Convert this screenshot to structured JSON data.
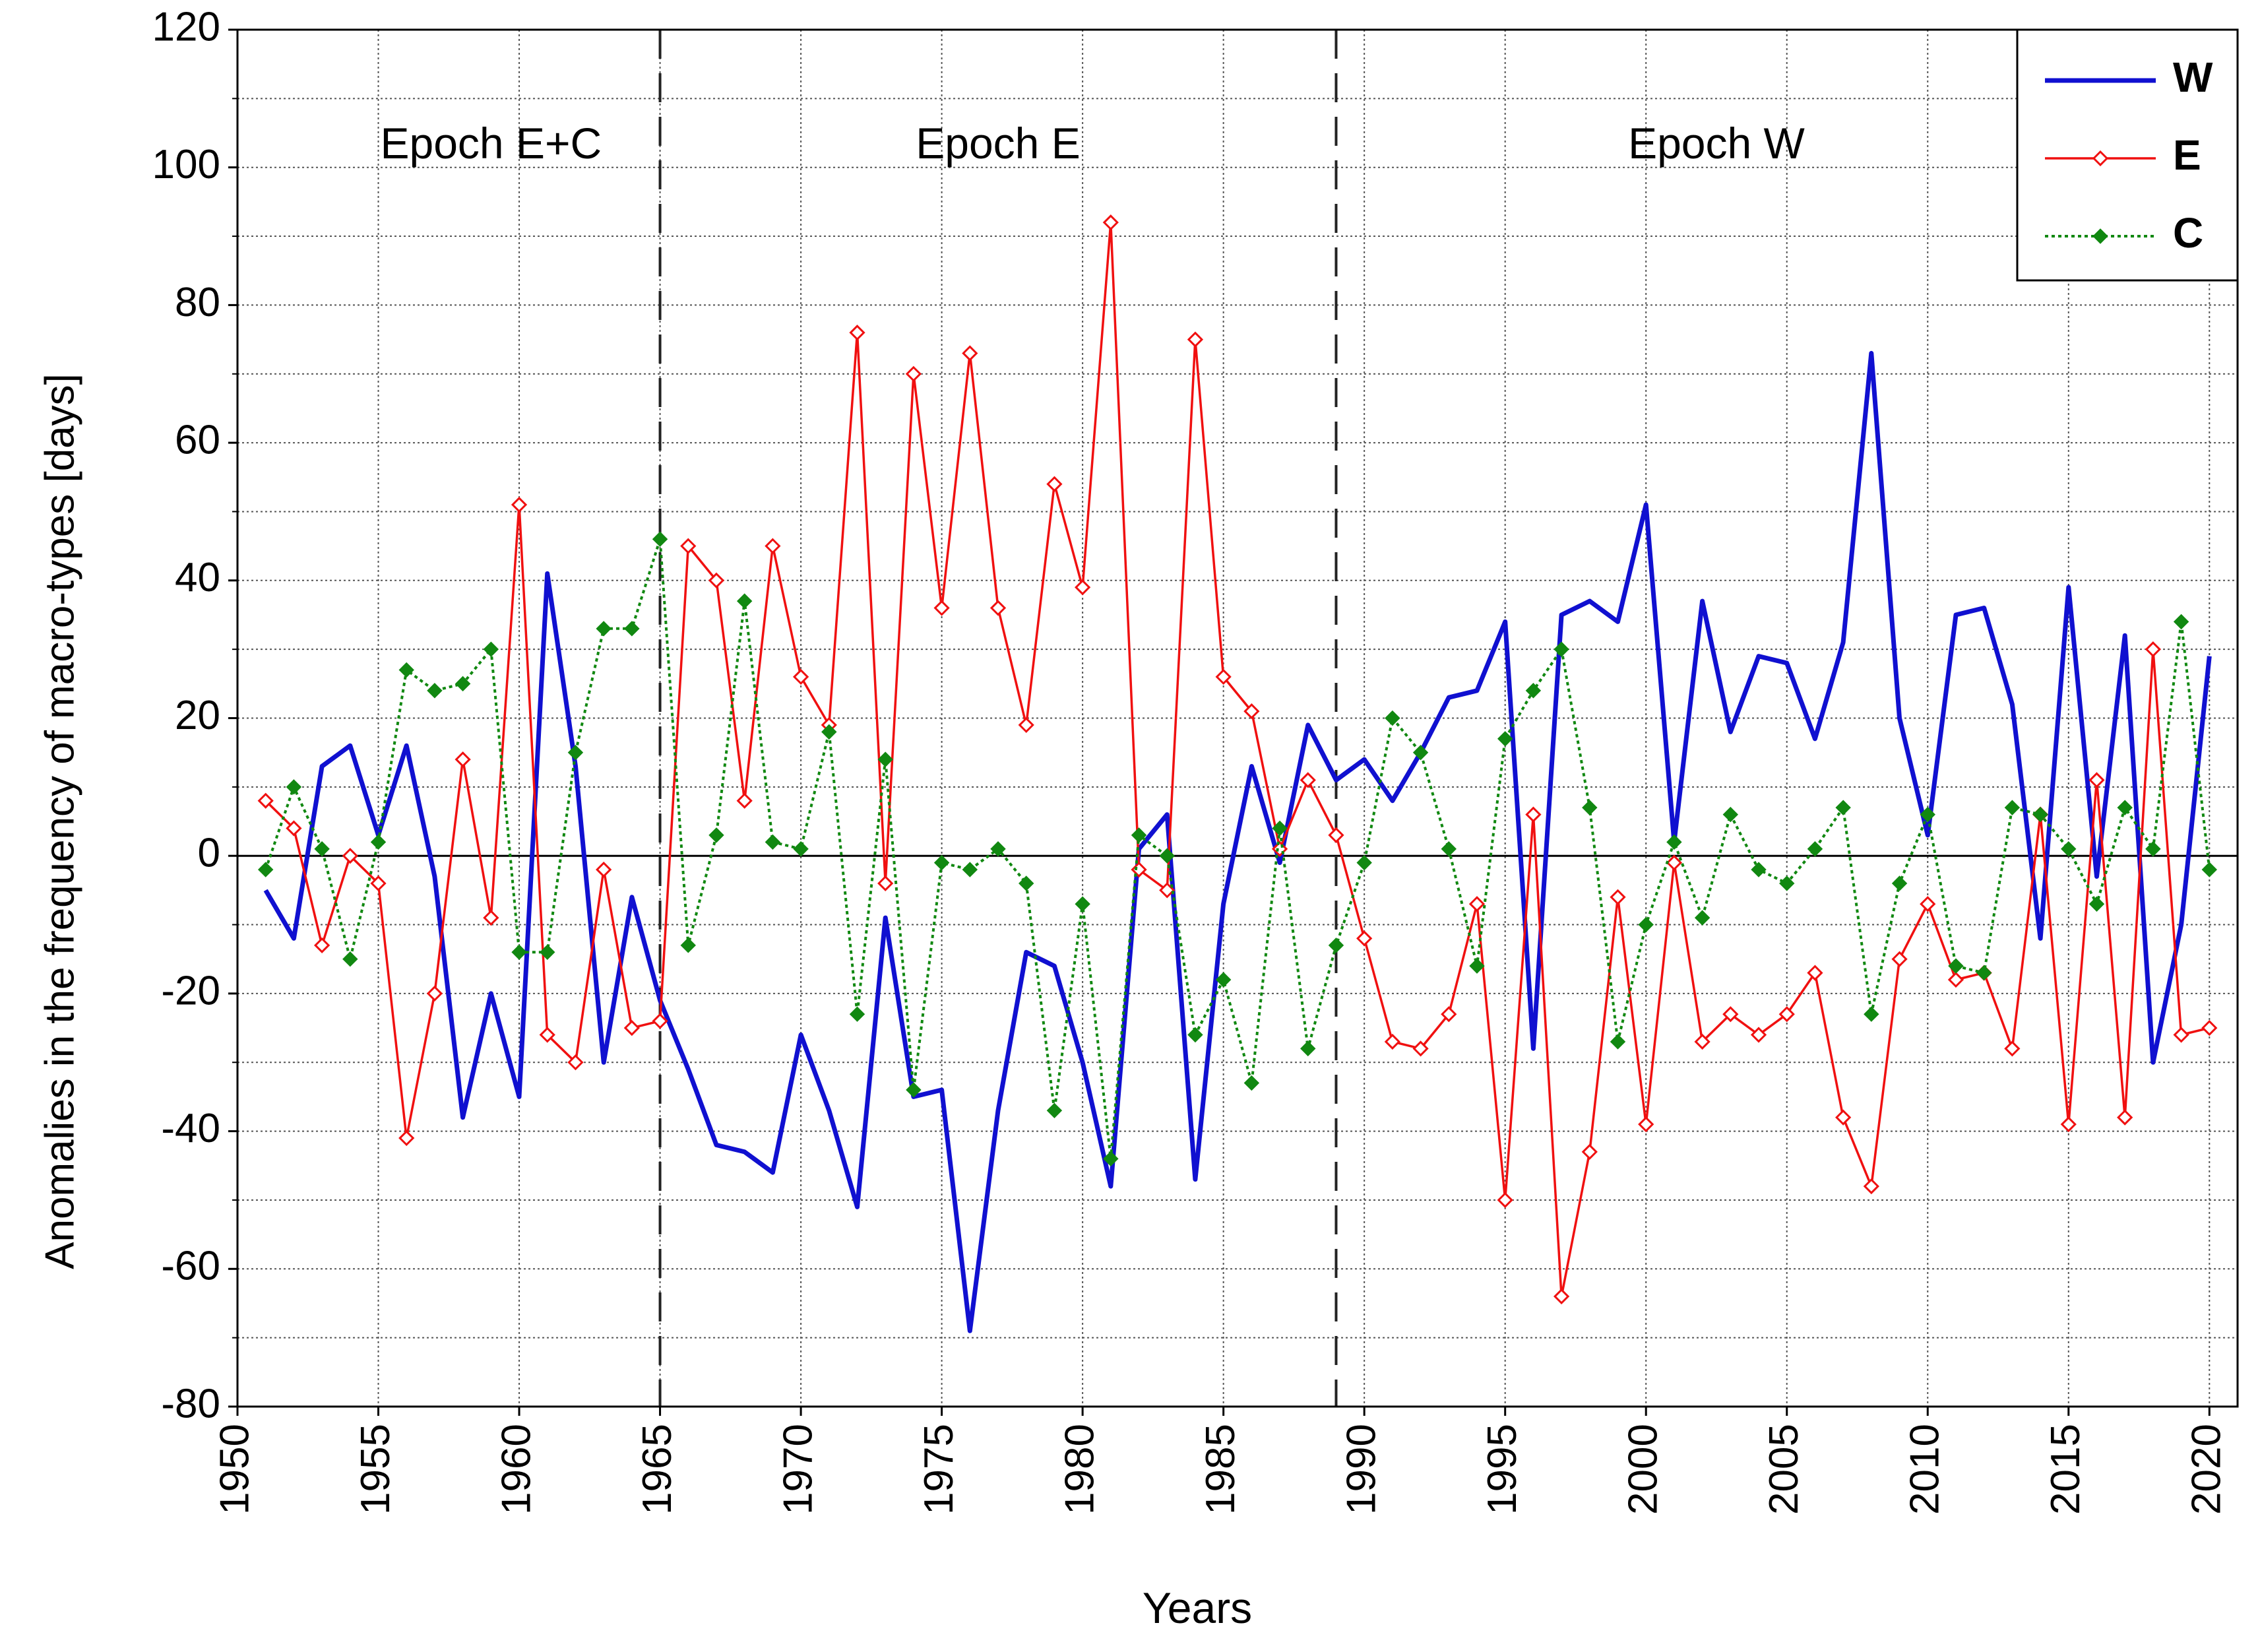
{
  "chart_data": {
    "type": "line",
    "title": "",
    "xlabel": "Years",
    "ylabel": "Anomalies in the frequency of macro-types [days]",
    "xlim": [
      1950,
      2021
    ],
    "ylim": [
      -80,
      120
    ],
    "grid": true,
    "legend_position": "top-right",
    "x_ticks": [
      "1950",
      "1955",
      "1960",
      "1965",
      "1970",
      "1975",
      "1980",
      "1985",
      "1990",
      "1995",
      "2000",
      "2005",
      "2010",
      "2015",
      "2020"
    ],
    "y_ticks": [
      "120",
      "100",
      "80",
      "60",
      "40",
      "20",
      "0",
      "-20",
      "-40",
      "-60",
      "-80"
    ],
    "epochs": [
      {
        "label": "Epoch E+C",
        "center_year": 1959
      },
      {
        "label": "Epoch E",
        "center_year": 1977
      },
      {
        "label": "Epoch W",
        "center_year": 2002.5
      }
    ],
    "epoch_boundaries": [
      1965,
      1989
    ],
    "x": [
      1951,
      1952,
      1953,
      1954,
      1955,
      1956,
      1957,
      1958,
      1959,
      1960,
      1961,
      1962,
      1963,
      1964,
      1965,
      1966,
      1967,
      1968,
      1969,
      1970,
      1971,
      1972,
      1973,
      1974,
      1975,
      1976,
      1977,
      1978,
      1979,
      1980,
      1981,
      1982,
      1983,
      1984,
      1985,
      1986,
      1987,
      1988,
      1989,
      1990,
      1991,
      1992,
      1993,
      1994,
      1995,
      1996,
      1997,
      1998,
      1999,
      2000,
      2001,
      2002,
      2003,
      2004,
      2005,
      2006,
      2007,
      2008,
      2009,
      2010,
      2011,
      2012,
      2013,
      2014,
      2015,
      2016,
      2017,
      2018,
      2019,
      2020
    ],
    "series": [
      {
        "name": "W",
        "color": "#1010d0",
        "style": "solid",
        "values": [
          -5,
          -12,
          13,
          16,
          3,
          16,
          -3,
          -38,
          -20,
          -35,
          41,
          13,
          -30,
          -6,
          -21,
          -31,
          -42,
          -43,
          -46,
          -26,
          -37,
          -51,
          -9,
          -35,
          -34,
          -69,
          -37,
          -14,
          -16,
          -30,
          -48,
          1,
          6,
          -47,
          -7,
          13,
          -1,
          19,
          11,
          14,
          8,
          15,
          23,
          24,
          34,
          -28,
          35,
          37,
          34,
          51,
          2,
          37,
          18,
          29,
          28,
          17,
          31,
          73,
          20,
          3,
          35,
          36,
          22,
          -12,
          39,
          -3,
          32,
          -30,
          -10,
          29
        ]
      },
      {
        "name": "E",
        "color": "#f01010",
        "style": "solid-open-diamond",
        "values": [
          8,
          4,
          -13,
          0,
          -4,
          -41,
          -20,
          14,
          -9,
          51,
          -26,
          -30,
          -2,
          -25,
          -24,
          45,
          40,
          8,
          45,
          26,
          19,
          76,
          -4,
          70,
          36,
          73,
          36,
          19,
          54,
          39,
          92,
          -2,
          -5,
          75,
          26,
          21,
          1,
          11,
          3,
          -12,
          -27,
          -28,
          -23,
          -7,
          -50,
          6,
          -64,
          -43,
          -6,
          -39,
          -1,
          -27,
          -23,
          -26,
          -23,
          -17,
          -38,
          -48,
          -15,
          -7,
          -18,
          -17,
          -28,
          6,
          -39,
          11,
          -38,
          30,
          -26,
          -25
        ]
      },
      {
        "name": "C",
        "color": "#118811",
        "style": "dotted-filled-diamond",
        "values": [
          -2,
          10,
          1,
          -15,
          2,
          27,
          24,
          25,
          30,
          -14,
          -14,
          15,
          33,
          33,
          46,
          -13,
          3,
          37,
          2,
          1,
          18,
          -23,
          14,
          -34,
          -1,
          -2,
          1,
          -4,
          -37,
          -7,
          -44,
          3,
          0,
          -26,
          -18,
          -33,
          4,
          -28,
          -13,
          -1,
          20,
          15,
          1,
          -16,
          17,
          24,
          30,
          7,
          -27,
          -10,
          2,
          -9,
          6,
          -2,
          -4,
          1,
          7,
          -23,
          -4,
          6,
          -16,
          -17,
          7,
          6,
          1,
          -7,
          7,
          1,
          34,
          -2
        ]
      }
    ]
  }
}
